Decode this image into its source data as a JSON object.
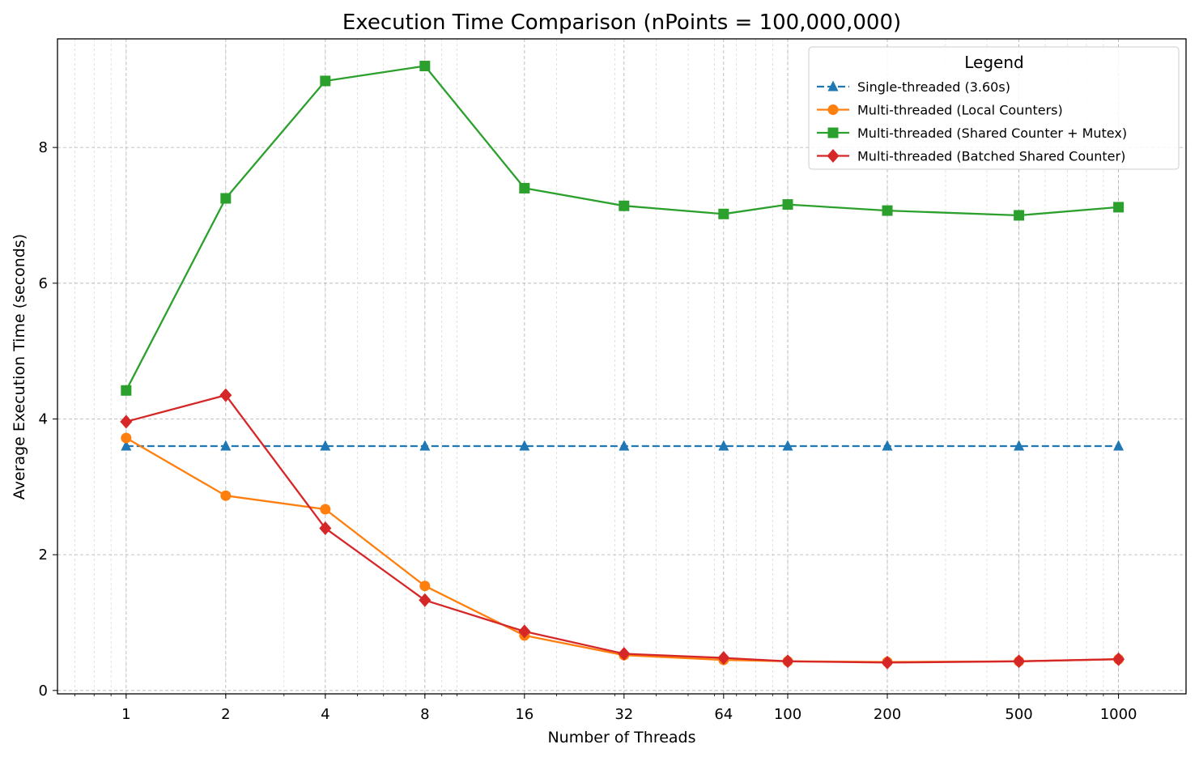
{
  "chart_data": {
    "type": "line",
    "title": "Execution Time Comparison (nPoints = 100,000,000)",
    "xlabel": "Number of Threads",
    "ylabel": "Average Execution Time (seconds)",
    "xscale": "log",
    "xlim": [
      0.62,
      1600
    ],
    "ylim": [
      -0.05,
      9.6
    ],
    "x": [
      1,
      2,
      4,
      8,
      16,
      32,
      64,
      100,
      200,
      500,
      1000
    ],
    "x_tick_labels": [
      "1",
      "2",
      "4",
      "8",
      "16",
      "32",
      "64",
      "100",
      "200",
      "500",
      "1000"
    ],
    "y_ticks": [
      0,
      2,
      4,
      6,
      8
    ],
    "y_tick_labels": [
      "0",
      "2",
      "4",
      "6",
      "8"
    ],
    "grid": true,
    "legend": {
      "title": "Legend",
      "placement": "top-right"
    },
    "series": [
      {
        "name": "Single-threaded (3.60s)",
        "color": "#1f77b4",
        "marker": "triangle",
        "dashed": true,
        "values": [
          3.6,
          3.6,
          3.6,
          3.6,
          3.6,
          3.6,
          3.6,
          3.6,
          3.6,
          3.6,
          3.6
        ]
      },
      {
        "name": "Multi-threaded (Local Counters)",
        "color": "#ff7f0e",
        "marker": "circle",
        "dashed": false,
        "values": [
          3.72,
          2.87,
          2.67,
          1.54,
          0.81,
          0.52,
          0.45,
          0.43,
          0.42,
          0.43,
          0.46
        ]
      },
      {
        "name": "Multi-threaded (Shared Counter + Mutex)",
        "color": "#2ca02c",
        "marker": "square",
        "dashed": false,
        "values": [
          4.42,
          7.25,
          8.98,
          9.2,
          7.4,
          7.14,
          7.02,
          7.16,
          7.07,
          7.0,
          7.12
        ]
      },
      {
        "name": "Multi-threaded (Batched Shared Counter)",
        "color": "#d62728",
        "marker": "diamond",
        "dashed": false,
        "values": [
          3.96,
          4.35,
          2.39,
          1.33,
          0.87,
          0.54,
          0.48,
          0.43,
          0.41,
          0.43,
          0.46
        ]
      }
    ]
  }
}
